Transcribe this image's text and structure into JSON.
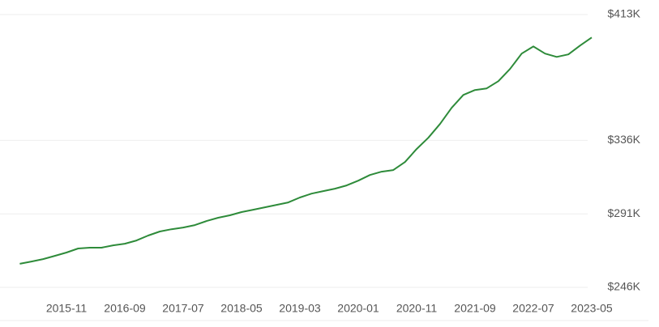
{
  "chart_data": {
    "type": "line",
    "x": [
      "2015-03",
      "2015-05",
      "2015-07",
      "2015-09",
      "2015-11",
      "2016-01",
      "2016-03",
      "2016-05",
      "2016-07",
      "2016-09",
      "2016-11",
      "2017-01",
      "2017-03",
      "2017-05",
      "2017-07",
      "2017-09",
      "2017-11",
      "2018-01",
      "2018-03",
      "2018-05",
      "2018-07",
      "2018-09",
      "2018-11",
      "2019-01",
      "2019-03",
      "2019-05",
      "2019-07",
      "2019-09",
      "2019-11",
      "2020-01",
      "2020-03",
      "2020-05",
      "2020-07",
      "2020-09",
      "2020-11",
      "2021-01",
      "2021-03",
      "2021-05",
      "2021-07",
      "2021-09",
      "2021-11",
      "2022-01",
      "2022-03",
      "2022-05",
      "2022-07",
      "2022-09",
      "2022-11",
      "2023-01",
      "2023-03",
      "2023-05"
    ],
    "series": [
      {
        "color": "#2e8b3a",
        "values": [
          260400,
          261800,
          263300,
          265300,
          267300,
          269800,
          270300,
          270300,
          271700,
          272700,
          274700,
          277700,
          280200,
          281600,
          282600,
          284100,
          286600,
          288600,
          290100,
          292100,
          293500,
          295000,
          296500,
          298000,
          301000,
          303400,
          304900,
          306400,
          308400,
          311300,
          314800,
          316800,
          317800,
          322700,
          330700,
          337600,
          346000,
          355900,
          363800,
          366800,
          367800,
          372200,
          379700,
          389100,
          393500,
          389100,
          387100,
          388600,
          394000,
          399000
        ]
      }
    ],
    "xticks": [
      "2015-11",
      "2016-09",
      "2017-07",
      "2018-05",
      "2019-03",
      "2020-01",
      "2020-11",
      "2021-09",
      "2022-07",
      "2023-05"
    ],
    "ylim": [
      246000,
      413000
    ],
    "yticks": [
      {
        "value": 246000,
        "label": "$246K"
      },
      {
        "value": 291000,
        "label": "$291K"
      },
      {
        "value": 336000,
        "label": "$336K"
      },
      {
        "value": 413000,
        "label": "$413K"
      }
    ],
    "grid": true
  }
}
